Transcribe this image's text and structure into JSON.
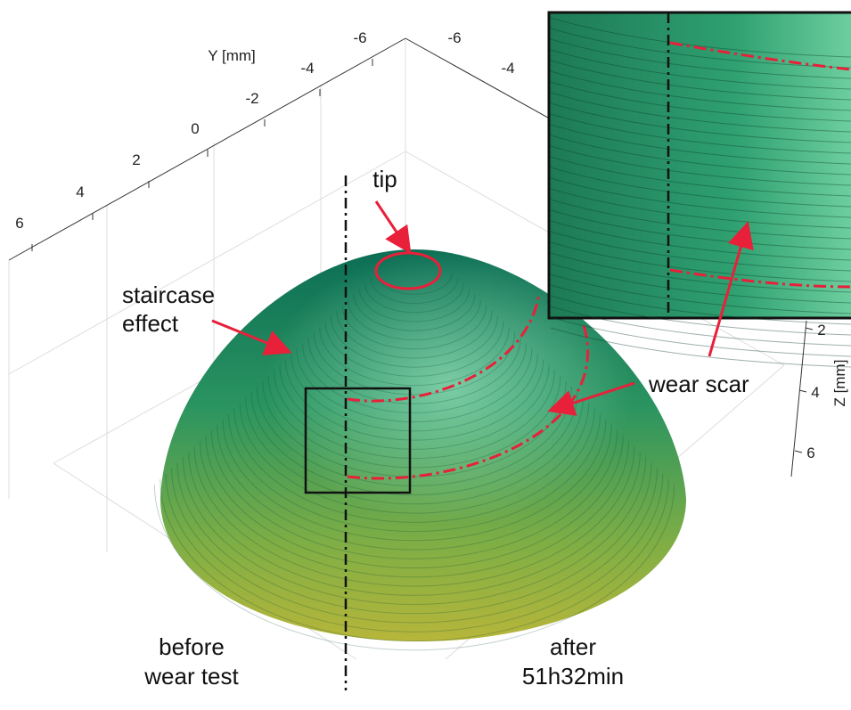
{
  "axes": {
    "y": {
      "label": "Y [mm]",
      "ticks": [
        "6",
        "4",
        "2",
        "0",
        "-2",
        "-4",
        "-6"
      ]
    },
    "x": {
      "ticks": [
        "-6",
        "-4"
      ]
    },
    "z": {
      "label": "Z [mm]",
      "ticks": [
        "2",
        "4",
        "6"
      ]
    }
  },
  "annotations": {
    "tip": "tip",
    "staircase_effect": [
      "staircase",
      "effect"
    ],
    "wear_scar": "wear scar"
  },
  "labels": {
    "before": [
      "before",
      "wear test"
    ],
    "after": [
      "after",
      "51h32min"
    ]
  }
}
